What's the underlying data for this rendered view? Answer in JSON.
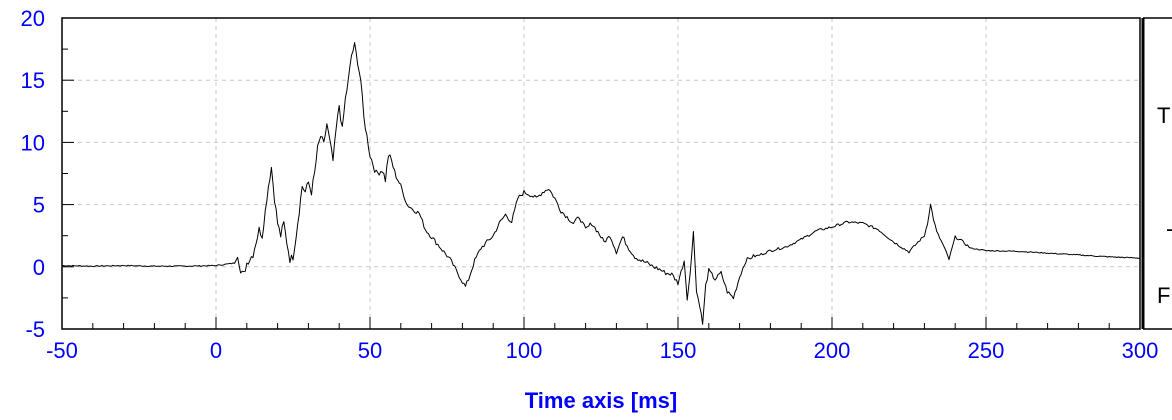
{
  "chart_data": {
    "type": "line",
    "title": "",
    "xlabel": "Time axis [ms]",
    "ylabel": "",
    "xlim": [
      -50,
      300
    ],
    "ylim": [
      -5,
      20
    ],
    "xticks": [
      "-50",
      "0",
      "50",
      "100",
      "150",
      "200",
      "250",
      "300"
    ],
    "yticks": [
      "-5",
      "0",
      "5",
      "10",
      "15",
      "20"
    ],
    "grid": true,
    "legend_fragments": [
      "T",
      "-",
      "F"
    ],
    "colors": {
      "axis_text": "#0000ff",
      "line": "#000000",
      "grid": "#c8c8c8"
    },
    "series": [
      {
        "x": [
          -50,
          -40,
          -30,
          -20,
          -10,
          0,
          6,
          7,
          8,
          9,
          10,
          12,
          14,
          15,
          16,
          17,
          18,
          19,
          20,
          21,
          22,
          23,
          24,
          25,
          26,
          27,
          28,
          29,
          30,
          31,
          32,
          33,
          34,
          35,
          36,
          37,
          38,
          39,
          40,
          41,
          42,
          43,
          44,
          45,
          46,
          47,
          48,
          49,
          50,
          52,
          54,
          55,
          56,
          57,
          58,
          60,
          62,
          64,
          66,
          68,
          70,
          72,
          74,
          76,
          78,
          80,
          81,
          82,
          84,
          86,
          88,
          90,
          92,
          94,
          96,
          98,
          100,
          102,
          104,
          106,
          108,
          110,
          112,
          114,
          116,
          118,
          120,
          122,
          124,
          126,
          128,
          130,
          132,
          134,
          136,
          138,
          140,
          142,
          144,
          146,
          148,
          150,
          152,
          153,
          154,
          155,
          156,
          157,
          158,
          159,
          160,
          162,
          164,
          166,
          168,
          170,
          172,
          174,
          176,
          178,
          180,
          185,
          190,
          195,
          200,
          205,
          210,
          215,
          220,
          225,
          228,
          230,
          231,
          232,
          233,
          234,
          236,
          238,
          240,
          242,
          245,
          250,
          260,
          270,
          280,
          290,
          300
        ],
        "y": [
          0.1,
          0.05,
          0.1,
          0.05,
          0.05,
          0.1,
          0.3,
          0.8,
          -0.5,
          -0.6,
          0.3,
          1.0,
          3.0,
          2.5,
          4.5,
          6.5,
          8.0,
          5.5,
          3.5,
          2.5,
          3.5,
          2.0,
          0.6,
          0.8,
          2.5,
          4.5,
          6.5,
          6.0,
          6.8,
          6.0,
          7.5,
          9.5,
          10.5,
          9.8,
          11.5,
          10.0,
          8.5,
          11.0,
          13.0,
          11.0,
          13.5,
          15.0,
          17.0,
          17.8,
          16.5,
          15.0,
          12.0,
          10.5,
          9.0,
          7.5,
          7.8,
          7.0,
          9.0,
          8.5,
          7.6,
          6.5,
          5.0,
          4.6,
          4.3,
          3.0,
          2.4,
          1.8,
          1.2,
          0.6,
          -0.3,
          -1.2,
          -1.6,
          -1.0,
          0.5,
          1.5,
          2.0,
          2.5,
          3.5,
          4.2,
          3.6,
          5.5,
          6.0,
          5.8,
          5.5,
          6.0,
          6.3,
          5.5,
          4.5,
          4.0,
          3.5,
          4.0,
          3.0,
          3.5,
          2.8,
          2.0,
          2.5,
          1.2,
          2.4,
          1.5,
          0.8,
          0.5,
          0.3,
          0.0,
          -0.2,
          -0.5,
          -0.6,
          -1.3,
          0.5,
          -2.5,
          -0.5,
          3.0,
          -2.0,
          -3.0,
          -4.6,
          -1.5,
          -0.3,
          -1.0,
          -0.5,
          -2.0,
          -2.5,
          -0.8,
          0.5,
          0.8,
          0.9,
          1.1,
          1.3,
          1.6,
          2.2,
          2.9,
          3.2,
          3.6,
          3.5,
          3.0,
          2.0,
          1.2,
          2.0,
          2.5,
          3.5,
          5.0,
          3.8,
          2.8,
          1.8,
          0.6,
          2.4,
          2.1,
          1.5,
          1.3,
          1.25,
          1.1,
          0.95,
          0.8,
          0.7
        ]
      }
    ]
  }
}
